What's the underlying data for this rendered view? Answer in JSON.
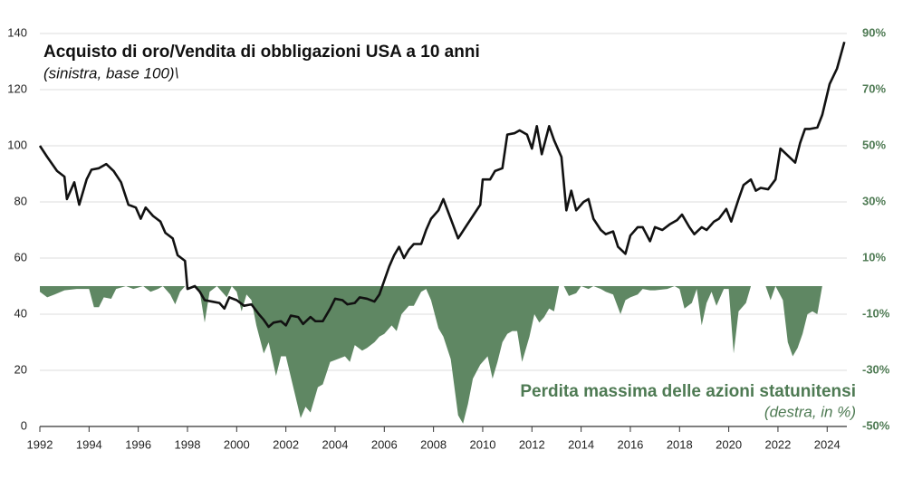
{
  "chart_data": {
    "type": "line",
    "title": "Acquisto di oro/Vendita di obbligazioni USA a 10 anni",
    "subtitle": "(sinistra, base 100)\\",
    "area_label": "Perdita massima delle azioni statunitensi",
    "area_sublabel": "(destra, in %)",
    "xlim": [
      1992,
      2024.8
    ],
    "xticks": [
      1992,
      1994,
      1996,
      1998,
      2000,
      2002,
      2004,
      2006,
      2008,
      2010,
      2012,
      2014,
      2016,
      2018,
      2020,
      2022,
      2024
    ],
    "ylim": [
      0,
      140
    ],
    "yticks": [
      0,
      20,
      40,
      60,
      80,
      100,
      120,
      140
    ],
    "y2lim": [
      -50,
      90
    ],
    "y2ticks": [
      {
        "value": -50,
        "label": "-50%"
      },
      {
        "value": -30,
        "label": "-30%"
      },
      {
        "value": -10,
        "label": "-10%"
      },
      {
        "value": 10,
        "label": "10%"
      },
      {
        "value": 30,
        "label": "30%"
      },
      {
        "value": 50,
        "label": "50%"
      },
      {
        "value": 70,
        "label": "70%"
      },
      {
        "value": 90,
        "label": "90%"
      }
    ],
    "grid": true,
    "series": [
      {
        "type": "area",
        "axis": "y2",
        "color": "#5f8763",
        "x": [
          1992.0,
          1992.3,
          1992.6,
          1993.0,
          1993.5,
          1994.0,
          1994.2,
          1994.4,
          1994.6,
          1994.9,
          1995.1,
          1995.5,
          1995.8,
          1996.2,
          1996.5,
          1996.8,
          1997.0,
          1997.3,
          1997.5,
          1997.7,
          1997.9,
          1998.2,
          1998.5,
          1998.7,
          1998.9,
          1999.2,
          1999.4,
          1999.6,
          1999.8,
          2000.0,
          2000.2,
          2000.4,
          2000.6,
          2000.8,
          2001.1,
          2001.3,
          2001.6,
          2001.8,
          2002.0,
          2002.3,
          2002.6,
          2002.8,
          2003.0,
          2003.3,
          2003.5,
          2003.8,
          2004.1,
          2004.4,
          2004.6,
          2004.8,
          2005.1,
          2005.3,
          2005.6,
          2005.8,
          2006.0,
          2006.3,
          2006.5,
          2006.7,
          2007.0,
          2007.2,
          2007.5,
          2007.7,
          2007.9,
          2008.2,
          2008.4,
          2008.7,
          2009.0,
          2009.2,
          2009.4,
          2009.6,
          2009.9,
          2010.2,
          2010.4,
          2010.6,
          2010.8,
          2011.0,
          2011.2,
          2011.4,
          2011.6,
          2011.9,
          2012.1,
          2012.3,
          2012.5,
          2012.7,
          2012.9,
          2013.1,
          2013.3,
          2013.5,
          2013.8,
          2014.0,
          2014.3,
          2014.5,
          2014.8,
          2015.0,
          2015.3,
          2015.6,
          2015.8,
          2016.0,
          2016.3,
          2016.5,
          2016.8,
          2017.0,
          2017.5,
          2017.8,
          2018.0,
          2018.2,
          2018.5,
          2018.7,
          2018.9,
          2019.1,
          2019.3,
          2019.5,
          2019.8,
          2020.0,
          2020.2,
          2020.4,
          2020.7,
          2020.9,
          2021.2,
          2021.5,
          2021.7,
          2021.9,
          2022.2,
          2022.4,
          2022.6,
          2022.8,
          2023.0,
          2023.2,
          2023.4,
          2023.6,
          2023.8,
          2024.1,
          2024.4,
          2024.7
        ],
        "values": [
          -2,
          -4,
          -3,
          -1.5,
          -1,
          -1,
          -7.5,
          -7.5,
          -4,
          -4.5,
          -1,
          0,
          -1,
          0,
          -2,
          -1,
          0,
          -3,
          -6.5,
          -2,
          0,
          0,
          -2,
          -13,
          -2,
          0,
          -2,
          -4,
          0,
          -2,
          -9,
          -3,
          -5,
          -14,
          -24,
          -20,
          -32,
          -25,
          -25,
          -36,
          -47,
          -43,
          -45,
          -36,
          -35,
          -27,
          -26,
          -25,
          -27,
          -21,
          -23,
          -22,
          -20,
          -18,
          -17,
          -14,
          -16,
          -10,
          -7,
          -7,
          -2,
          -1,
          -5,
          -15,
          -18,
          -26,
          -46,
          -49,
          -42,
          -33,
          -28,
          -25,
          -33,
          -27,
          -20,
          -17,
          -16,
          -16,
          -27,
          -18,
          -10,
          -13,
          -11,
          -8,
          -9,
          0,
          0,
          -3.5,
          -2.5,
          0,
          -1,
          0,
          -1,
          -2,
          -3,
          -10,
          -5,
          -4,
          -3,
          -1,
          -1.5,
          -1.5,
          -1,
          0,
          -1,
          -8,
          -6,
          -1,
          -14,
          -6,
          -2,
          -7,
          -1,
          -1,
          -24,
          -9,
          -6,
          0,
          0,
          0,
          -5,
          0,
          -5,
          -20,
          -25,
          -22,
          -17,
          -10,
          -9,
          -10,
          0,
          0,
          0,
          0
        ]
      },
      {
        "type": "line",
        "axis": "y",
        "color": "#111111",
        "x": [
          1992.0,
          1992.3,
          1992.7,
          1993.0,
          1993.1,
          1993.4,
          1993.6,
          1993.9,
          1994.1,
          1994.4,
          1994.7,
          1995.0,
          1995.3,
          1995.6,
          1995.9,
          1996.1,
          1996.3,
          1996.6,
          1996.9,
          1997.1,
          1997.4,
          1997.6,
          1997.9,
          1998.0,
          1998.3,
          1998.5,
          1998.7,
          1999.0,
          1999.3,
          1999.5,
          1999.7,
          2000.0,
          2000.3,
          2000.6,
          2000.9,
          2001.1,
          2001.3,
          2001.5,
          2001.8,
          2002.0,
          2002.2,
          2002.5,
          2002.7,
          2003.0,
          2003.2,
          2003.5,
          2003.8,
          2004.0,
          2004.3,
          2004.5,
          2004.8,
          2005.0,
          2005.3,
          2005.6,
          2005.8,
          2006.0,
          2006.2,
          2006.4,
          2006.6,
          2006.8,
          2007.0,
          2007.2,
          2007.5,
          2007.7,
          2007.9,
          2008.2,
          2008.4,
          2008.7,
          2009.0,
          2009.3,
          2009.6,
          2009.9,
          2010.0,
          2010.3,
          2010.5,
          2010.8,
          2011.0,
          2011.3,
          2011.5,
          2011.8,
          2012.0,
          2012.2,
          2012.4,
          2012.7,
          2012.9,
          2013.2,
          2013.4,
          2013.6,
          2013.8,
          2014.1,
          2014.3,
          2014.5,
          2014.8,
          2015.0,
          2015.3,
          2015.5,
          2015.8,
          2016.0,
          2016.3,
          2016.5,
          2016.8,
          2017.0,
          2017.3,
          2017.6,
          2017.9,
          2018.1,
          2018.4,
          2018.6,
          2018.9,
          2019.1,
          2019.4,
          2019.6,
          2019.9,
          2020.1,
          2020.4,
          2020.6,
          2020.9,
          2021.1,
          2021.3,
          2021.6,
          2021.9,
          2022.1,
          2022.4,
          2022.7,
          2022.9,
          2023.1,
          2023.3,
          2023.6,
          2023.8,
          2024.1,
          2024.4,
          2024.7
        ],
        "values": [
          100,
          96,
          91,
          89,
          81,
          87,
          79,
          88,
          91.5,
          92,
          93.5,
          91,
          87,
          79,
          78,
          74,
          78,
          75,
          73,
          69,
          67,
          61,
          59,
          49,
          50,
          48,
          45,
          44.5,
          44,
          42,
          46,
          45,
          43,
          43.5,
          40,
          38,
          35.5,
          37,
          37.5,
          36,
          39.5,
          39,
          36.5,
          39,
          37.5,
          37.5,
          42,
          45.5,
          45,
          43.5,
          44,
          46,
          45.5,
          44.5,
          47,
          52,
          57,
          61,
          64,
          60,
          63,
          65,
          65,
          70,
          74,
          77,
          81,
          74,
          67,
          71,
          75,
          79,
          88,
          88,
          91,
          92,
          104,
          104.5,
          105.5,
          104,
          99,
          107,
          97,
          107,
          102,
          96,
          77,
          84,
          77,
          80,
          81,
          74,
          70,
          68.5,
          69.5,
          64,
          61.5,
          68,
          71,
          71,
          66,
          71,
          70,
          72,
          73.5,
          75.5,
          71,
          68.5,
          71,
          70,
          73,
          74,
          77.5,
          73,
          81,
          86,
          88,
          84,
          85,
          84.5,
          88,
          99,
          96.5,
          94,
          101,
          106,
          106,
          106.5,
          111,
          122,
          127.5,
          137
        ]
      }
    ]
  }
}
